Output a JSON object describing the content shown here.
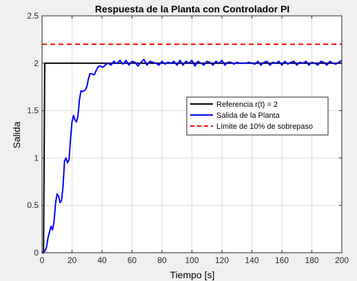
{
  "chart_data": {
    "type": "line",
    "title": "Respuesta de la Planta con Controlador PI",
    "xlabel": "Tiempo [s]",
    "ylabel": "Salida",
    "xlim": [
      0,
      200
    ],
    "ylim": [
      0,
      2.5
    ],
    "xticks": [
      0,
      20,
      40,
      60,
      80,
      100,
      120,
      140,
      160,
      180,
      200
    ],
    "yticks": [
      0,
      0.5,
      1,
      1.5,
      2,
      2.5
    ],
    "xtick_labels": [
      "0",
      "20",
      "40",
      "60",
      "80",
      "100",
      "120",
      "140",
      "160",
      "180",
      "200"
    ],
    "ytick_labels": [
      "0",
      "0.5",
      "1",
      "1.5",
      "2",
      "2.5"
    ],
    "grid": true,
    "legend_position": "center-right",
    "background": "#f0f0f0",
    "plot_background": "#ffffff",
    "grid_color": "#dcdcdc",
    "series": [
      {
        "name": "Referencia r(t) = 2",
        "color": "#000000",
        "style": "solid",
        "x": [
          0,
          1,
          1.8,
          200
        ],
        "y": [
          0,
          0,
          2,
          2
        ]
      },
      {
        "name": "Salida de la Planta",
        "color": "#0000ff",
        "style": "solid",
        "x": [
          0,
          1,
          2,
          3,
          4,
          5,
          6,
          7,
          8,
          9,
          10,
          11,
          12,
          13,
          14,
          15,
          16,
          17,
          18,
          19,
          20,
          21,
          22,
          23,
          24,
          25,
          26,
          27,
          28,
          29,
          30,
          31,
          32,
          33,
          34,
          35,
          36,
          37,
          38,
          39,
          40,
          41,
          42,
          43,
          44,
          45,
          46,
          47,
          48,
          49,
          50,
          52,
          54,
          56,
          58,
          60,
          62,
          64,
          66,
          68,
          70,
          72,
          74,
          76,
          78,
          80,
          82,
          84,
          86,
          88,
          90,
          92,
          94,
          96,
          98,
          100,
          102,
          104,
          106,
          108,
          110,
          112,
          114,
          116,
          118,
          120,
          122,
          124,
          126,
          128,
          130,
          132,
          134,
          136,
          138,
          140,
          142,
          144,
          146,
          148,
          150,
          152,
          154,
          156,
          158,
          160,
          162,
          164,
          166,
          168,
          170,
          172,
          174,
          176,
          178,
          180,
          182,
          184,
          186,
          188,
          190,
          192,
          194,
          196,
          198,
          200
        ],
        "y": [
          0,
          0.01,
          0.02,
          0.06,
          0.16,
          0.22,
          0.28,
          0.24,
          0.33,
          0.52,
          0.62,
          0.6,
          0.53,
          0.55,
          0.7,
          0.97,
          1.0,
          0.95,
          0.98,
          1.2,
          1.38,
          1.45,
          1.4,
          1.38,
          1.45,
          1.62,
          1.71,
          1.7,
          1.71,
          1.72,
          1.76,
          1.84,
          1.89,
          1.89,
          1.88,
          1.88,
          1.92,
          1.95,
          1.97,
          1.97,
          1.96,
          1.96,
          1.98,
          1.99,
          2.0,
          1.99,
          1.98,
          2.0,
          2.02,
          2.0,
          2.0,
          2.03,
          1.99,
          2.03,
          1.98,
          2.02,
          2.01,
          1.97,
          2.01,
          2.04,
          1.98,
          2.02,
          2.01,
          2.0,
          1.98,
          2.02,
          1.99,
          2.01,
          2.0,
          2.02,
          1.98,
          2.03,
          1.98,
          2.02,
          2.0,
          2.03,
          1.97,
          2.02,
          2.0,
          1.98,
          2.02,
          2.01,
          1.98,
          2.02,
          2.0,
          2.03,
          1.98,
          2.01,
          2.01,
          1.99,
          2.01,
          2.0,
          2.0,
          2.0,
          2.01,
          2.0,
          1.99,
          2.02,
          1.98,
          2.01,
          2.02,
          1.98,
          2.01,
          2.0,
          2.02,
          1.98,
          2.02,
          1.99,
          2.01,
          2.02,
          1.98,
          2.01,
          2.0,
          2.02,
          1.98,
          2.01,
          2.0,
          1.98,
          2.02,
          2.01,
          1.98,
          2.02,
          2.0,
          1.99,
          2.01,
          2.03
        ]
      },
      {
        "name": "Límite de 10% de sobrepaso",
        "color": "#ff0000",
        "style": "dashed",
        "x": [
          0,
          200
        ],
        "y": [
          2.2,
          2.2
        ]
      }
    ]
  }
}
